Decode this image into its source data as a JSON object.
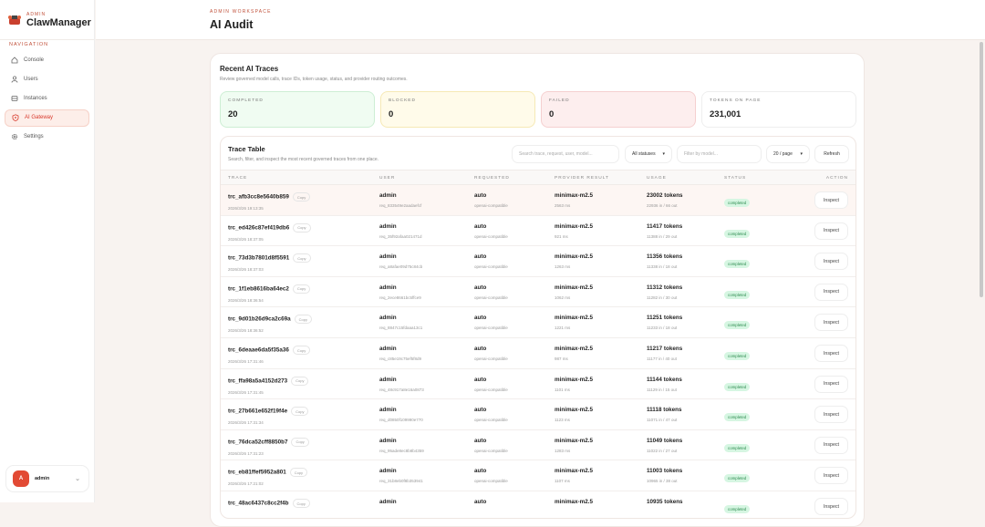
{
  "brand": {
    "sub": "ADMIN",
    "title": "ClawManager"
  },
  "nav_label": "NAVIGATION",
  "nav": [
    {
      "label": "Console",
      "icon": "home-icon"
    },
    {
      "label": "Users",
      "icon": "users-icon"
    },
    {
      "label": "Instances",
      "icon": "server-icon"
    },
    {
      "label": "AI Gateway",
      "icon": "shield-icon",
      "active": true
    },
    {
      "label": "Settings",
      "icon": "gear-icon"
    }
  ],
  "user": {
    "initial": "A",
    "name": "admin"
  },
  "header": {
    "workspace": "ADMIN WORKSPACE",
    "title": "AI Audit"
  },
  "main": {
    "title": "Recent AI Traces",
    "subtitle": "Review governed model calls, trace IDs, token usage, status, and provider routing outcomes."
  },
  "stats": [
    {
      "label": "COMPLETED",
      "value": "20",
      "bg": "#f0fcf2",
      "border": "#cdeed4"
    },
    {
      "label": "BLOCKED",
      "value": "0",
      "bg": "#fffbea",
      "border": "#f6e9b5"
    },
    {
      "label": "FAILED",
      "value": "0",
      "bg": "#fdeeee",
      "border": "#f5d0d0"
    },
    {
      "label": "TOKENS ON PAGE",
      "value": "231,001",
      "bg": "#ffffff",
      "border": "#eeeeee"
    }
  ],
  "table": {
    "title": "Trace Table",
    "subtitle": "Search, filter, and inspect the most recent governed traces from one place.",
    "search_placeholder": "Search trace, request, user, model...",
    "status_select": "All statuses",
    "model_placeholder": "Filter by model...",
    "page_select": "20 / page",
    "refresh": "Refresh",
    "columns": [
      "TRACE",
      "USER",
      "REQUESTED",
      "PROVIDER RESULT",
      "USAGE",
      "STATUS",
      "ACTION"
    ],
    "copy_label": "Copy",
    "inspect_label": "Inspect",
    "rows": [
      {
        "trace": "trc_afb3cc8e5640b859",
        "time": "2026/3/26 19:13:35",
        "user": "admin",
        "req": "req_833549e2aadaefcf",
        "requested": "auto",
        "proto": "openai-compatible",
        "model": "minimax-m2.5",
        "ms": "2563 ms",
        "tokens": "23002 tokens",
        "io": "22936 in / 66 out",
        "status": "completed"
      },
      {
        "trace": "trc_ed426c87ef419db6",
        "time": "2026/3/26 18:37:05",
        "user": "admin",
        "req": "req_35f92afaa021471d",
        "requested": "auto",
        "proto": "openai-compatible",
        "model": "minimax-m2.5",
        "ms": "921 ms",
        "tokens": "11417 tokens",
        "io": "11388 in / 29 out",
        "status": "completed"
      },
      {
        "trace": "trc_73d3b7801d8f5591",
        "time": "2026/3/26 18:37:03",
        "user": "admin",
        "req": "req_a8afae09d75c84cb",
        "requested": "auto",
        "proto": "openai-compatible",
        "model": "minimax-m2.5",
        "ms": "1263 ms",
        "tokens": "11356 tokens",
        "io": "11338 in / 18 out",
        "status": "completed"
      },
      {
        "trace": "trc_1f1eb8616ba64ec2",
        "time": "2026/3/26 18:36:54",
        "user": "admin",
        "req": "req_2ece8661bc5ffce9",
        "requested": "auto",
        "proto": "openai-compatible",
        "model": "minimax-m2.5",
        "ms": "1062 ms",
        "tokens": "11312 tokens",
        "io": "11282 in / 30 out",
        "status": "completed"
      },
      {
        "trace": "trc_9d01b26d9ca2c69a",
        "time": "2026/3/26 18:36:52",
        "user": "admin",
        "req": "req_8847c15fdaaa13c1",
        "requested": "auto",
        "proto": "openai-compatible",
        "model": "minimax-m2.5",
        "ms": "1221 ms",
        "tokens": "11251 tokens",
        "io": "11233 in / 18 out",
        "status": "completed"
      },
      {
        "trace": "trc_6deaae6da5f35a36",
        "time": "2026/3/26 17:31:46",
        "user": "admin",
        "req": "req_c85e19c75ef5f8d9",
        "requested": "auto",
        "proto": "openai-compatible",
        "model": "minimax-m2.5",
        "ms": "987 ms",
        "tokens": "11217 tokens",
        "io": "11177 in / 40 out",
        "status": "completed"
      },
      {
        "trace": "trc_ffa98a5a4152d273",
        "time": "2026/3/26 17:31:45",
        "user": "admin",
        "req": "req_48c917a8e16a0873",
        "requested": "auto",
        "proto": "openai-compatible",
        "model": "minimax-m2.5",
        "ms": "1101 ms",
        "tokens": "11144 tokens",
        "io": "11129 in / 15 out",
        "status": "completed"
      },
      {
        "trace": "trc_27b661e652f19f4e",
        "time": "2026/3/26 17:31:34",
        "user": "admin",
        "req": "req_d0850f109990e770",
        "requested": "auto",
        "proto": "openai-compatible",
        "model": "minimax-m2.5",
        "ms": "1123 ms",
        "tokens": "11118 tokens",
        "io": "11071 in / 47 out",
        "status": "completed"
      },
      {
        "trace": "trc_76dca52cff8850b7",
        "time": "2026/3/26 17:31:23",
        "user": "admin",
        "req": "req_95ade8ec8b8b4359",
        "requested": "auto",
        "proto": "openai-compatible",
        "model": "minimax-m2.5",
        "ms": "1283 ms",
        "tokens": "11049 tokens",
        "io": "11022 in / 27 out",
        "status": "completed"
      },
      {
        "trace": "trc_eb81ffef5952a801",
        "time": "2026/3/26 17:21:02",
        "user": "admin",
        "req": "req_31b8eb0f8b353941",
        "requested": "auto",
        "proto": "openai-compatible",
        "model": "minimax-m2.5",
        "ms": "1107 ms",
        "tokens": "11003 tokens",
        "io": "10965 in / 38 out",
        "status": "completed"
      },
      {
        "trace": "trc_48ac6437c8cc2f4b",
        "time": "",
        "user": "admin",
        "req": "",
        "requested": "auto",
        "proto": "",
        "model": "minimax-m2.5",
        "ms": "",
        "tokens": "10935 tokens",
        "io": "",
        "status": "completed"
      }
    ]
  }
}
